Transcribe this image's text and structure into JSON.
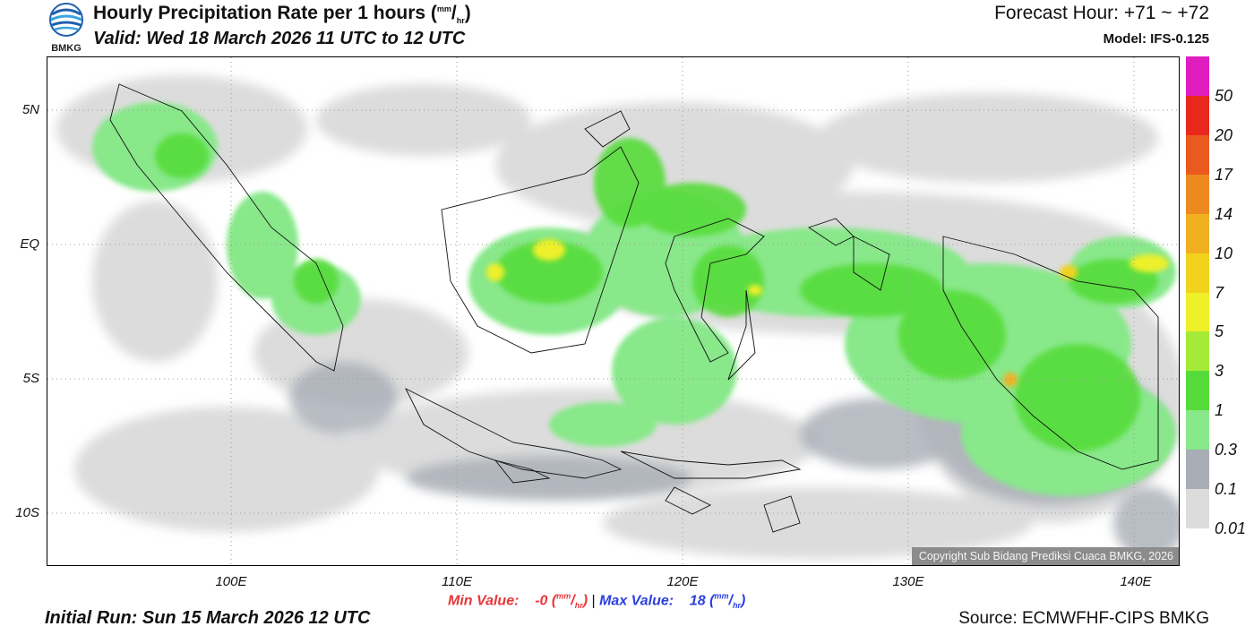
{
  "header": {
    "title_main": "Hourly Precipitation Rate per 1 hours (",
    "title_unit_num": "mm",
    "title_unit_den": "hr",
    "title_close": ")",
    "valid": "Valid: Wed 18 March 2026 11 UTC to 12 UTC",
    "forecast_hour": "Forecast Hour: +71 ~ +72",
    "model": "Model: IFS-0.125",
    "logo_text": "BMKG"
  },
  "map": {
    "region": "Indonesia",
    "copyright": "Copyright Sub Bidang Prediksi Cuaca BMKG, 2026",
    "lat_labels": [
      "5N",
      "EQ",
      "5S",
      "10S"
    ],
    "lon_labels": [
      "100E",
      "110E",
      "120E",
      "130E",
      "140E"
    ]
  },
  "colorbar": {
    "labels": [
      "50",
      "20",
      "17",
      "14",
      "10",
      "7",
      "5",
      "3",
      "1",
      "0.3",
      "0.1",
      "0.01"
    ],
    "colors": [
      "#e01ec0",
      "#e8281c",
      "#ea5a1e",
      "#ec8a20",
      "#f0b020",
      "#f2d21c",
      "#eef02a",
      "#a4ea36",
      "#56dc3a",
      "#88e88a",
      "#a8adb6",
      "#dcdcdc"
    ]
  },
  "stats": {
    "min_label": "Min Value:",
    "min_value": "-0",
    "max_label": "Max Value:",
    "max_value": "18",
    "unit_num": "mm",
    "unit_den": "hr",
    "separator": "|"
  },
  "footer": {
    "initial_run": "Initial Run: Sun 15 March 2026 12 UTC",
    "source": "Source: ECMWFHF-CIPS BMKG"
  }
}
